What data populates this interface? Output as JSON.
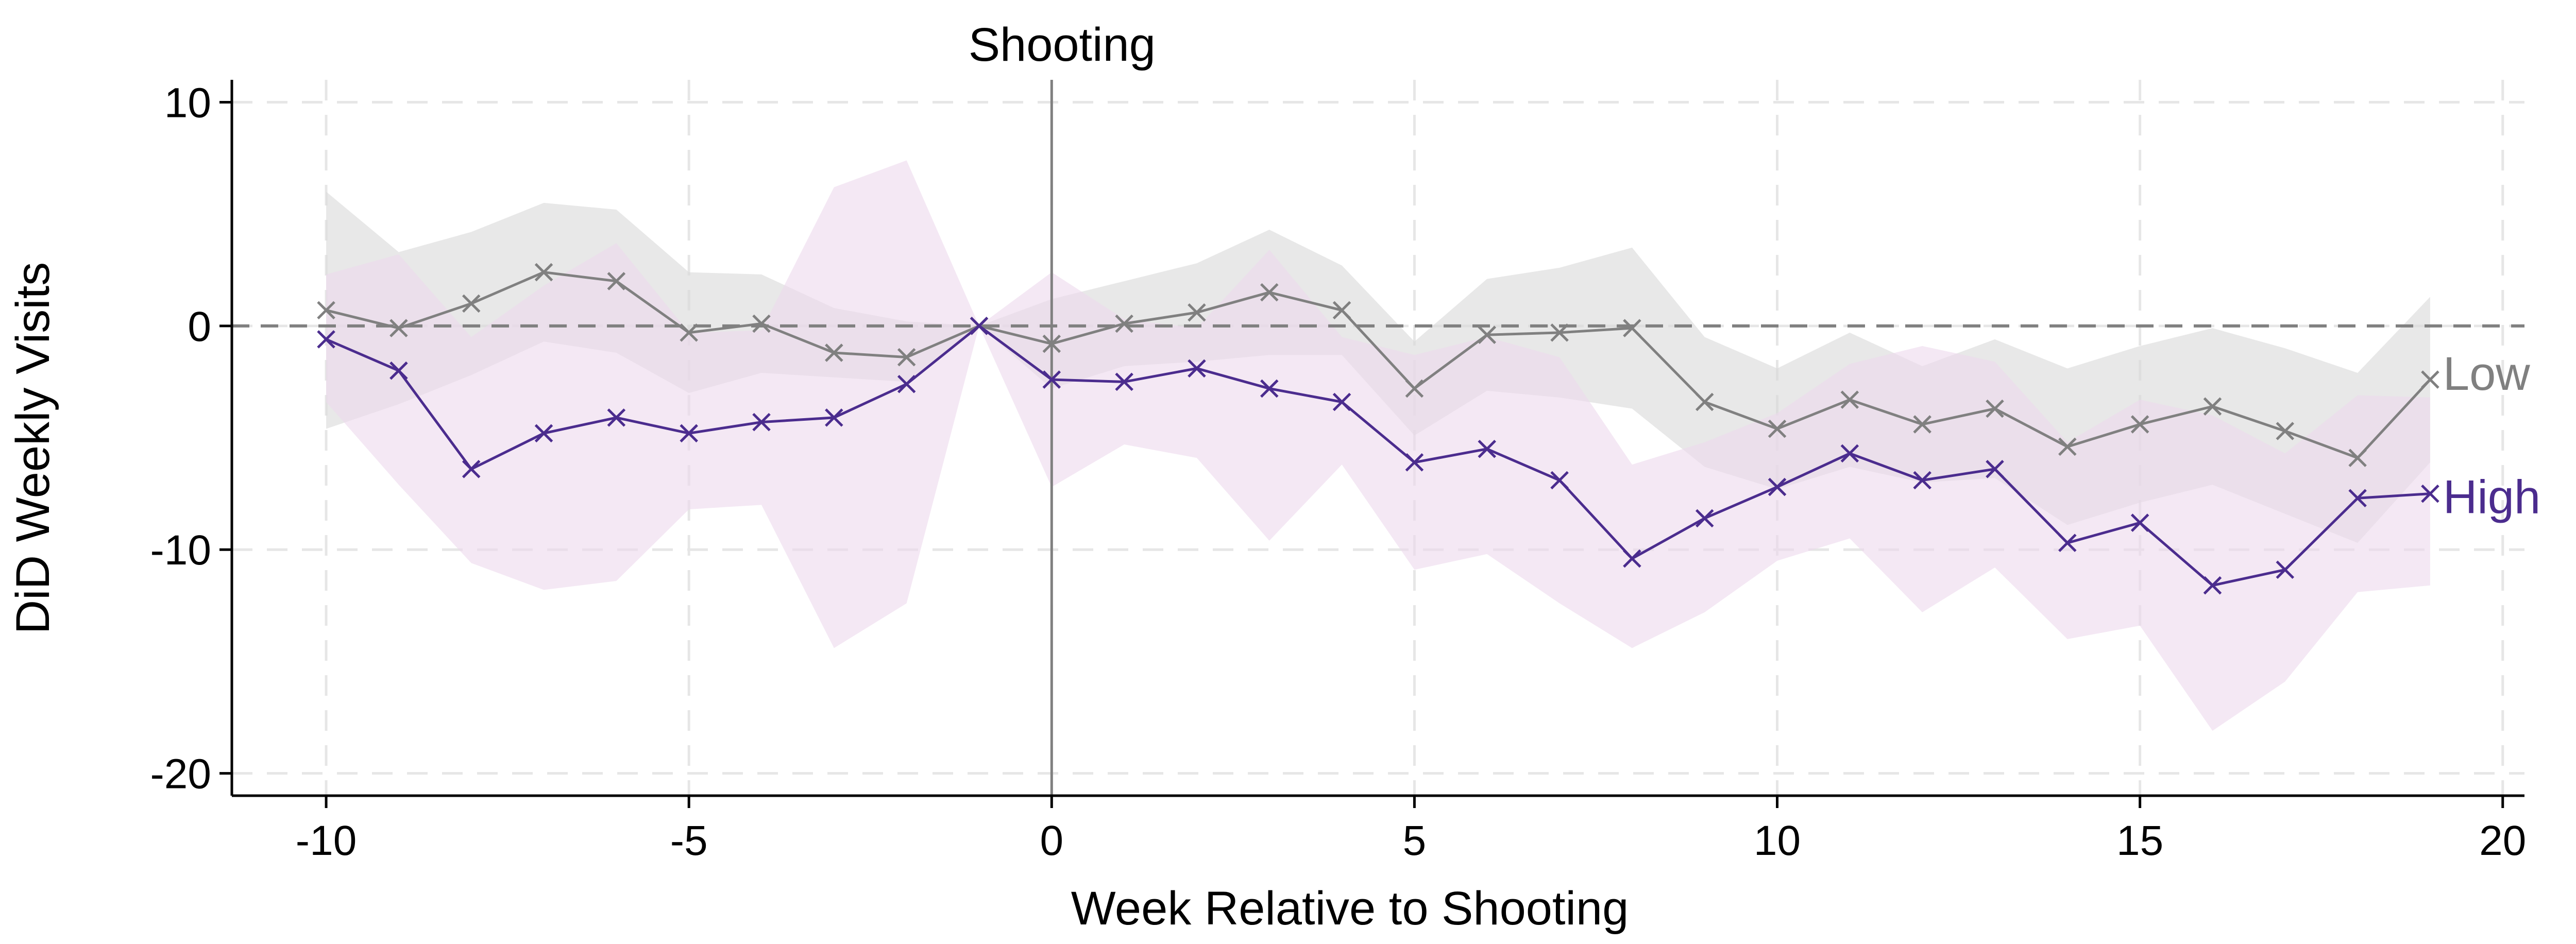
{
  "chart_data": {
    "type": "line",
    "title": "",
    "xlabel": "Week Relative to Shooting",
    "ylabel": "DiD Weekly Visits",
    "xlim": [
      -11.3,
      20.3
    ],
    "ylim": [
      -21,
      11
    ],
    "x_ticks": [
      -10,
      -5,
      0,
      5,
      10,
      15,
      20
    ],
    "y_ticks": [
      10,
      0,
      -10,
      -20
    ],
    "x_tick_labels": [
      "-10",
      "-5",
      "0",
      "5",
      "10",
      "15",
      "20"
    ],
    "y_tick_labels": [
      "10",
      "0",
      "-10",
      "-20"
    ],
    "grid": true,
    "reference_line_y": 0,
    "event_line": {
      "x": 0,
      "label": "Shooting"
    },
    "x": [
      -10,
      -9,
      -8,
      -7,
      -6,
      -5,
      -4,
      -3,
      -2,
      -1,
      0,
      1,
      2,
      3,
      4,
      5,
      6,
      7,
      8,
      9,
      10,
      11,
      12,
      13,
      14,
      15,
      16,
      17,
      18,
      19
    ],
    "series": [
      {
        "name": "Low",
        "color": "#808080",
        "band_color": "#d9d9d9",
        "marker": "x",
        "values": [
          0.7,
          -0.1,
          1.0,
          2.4,
          2.0,
          -0.3,
          0.1,
          -1.2,
          -1.4,
          0.0,
          -0.8,
          0.1,
          0.6,
          1.5,
          0.7,
          -2.8,
          -0.4,
          -0.3,
          -0.1,
          -3.4,
          -4.6,
          -3.3,
          -4.4,
          -3.7,
          -5.4,
          -4.4,
          -3.6,
          -4.7,
          -5.9,
          -2.4
        ],
        "upper": [
          6.0,
          3.3,
          4.2,
          5.5,
          5.2,
          2.4,
          2.3,
          0.8,
          0.2,
          0.0,
          1.2,
          2.0,
          2.8,
          4.3,
          2.7,
          -0.7,
          2.1,
          2.6,
          3.5,
          -0.5,
          -1.9,
          -0.3,
          -1.8,
          -0.6,
          -1.9,
          -0.9,
          -0.1,
          -1.0,
          -2.1,
          1.3
        ],
        "lower": [
          -4.6,
          -3.5,
          -2.2,
          -0.7,
          -1.2,
          -3.0,
          -2.1,
          -2.3,
          -2.5,
          0.0,
          -2.8,
          -1.8,
          -1.6,
          -1.3,
          -1.3,
          -4.9,
          -2.9,
          -3.2,
          -3.7,
          -6.3,
          -7.3,
          -6.3,
          -7.0,
          -6.8,
          -8.9,
          -7.9,
          -7.1,
          -8.4,
          -9.7,
          -6.1
        ]
      },
      {
        "name": "High",
        "color": "#4b2c8e",
        "band_color": "#ecd9ec",
        "marker": "x",
        "values": [
          -0.6,
          -2.0,
          -6.4,
          -4.8,
          -4.1,
          -4.8,
          -4.3,
          -4.1,
          -2.6,
          0.0,
          -2.4,
          -2.5,
          -1.9,
          -2.8,
          -3.4,
          -6.1,
          -5.5,
          -6.9,
          -10.4,
          -8.6,
          -7.2,
          -5.7,
          -6.9,
          -6.4,
          -9.7,
          -8.8,
          -11.6,
          -10.9,
          -7.7,
          -7.5
        ],
        "upper": [
          2.3,
          3.2,
          -0.5,
          1.8,
          3.7,
          -0.3,
          -0.2,
          6.2,
          7.4,
          0.0,
          2.4,
          0.3,
          -0.1,
          3.4,
          -0.5,
          -1.3,
          -0.5,
          -1.4,
          -6.2,
          -5.2,
          -3.9,
          -1.7,
          -0.9,
          -1.6,
          -5.2,
          -3.3,
          -4.0,
          -5.7,
          -3.1,
          -3.2
        ],
        "lower": [
          -3.4,
          -7.1,
          -10.6,
          -11.8,
          -11.4,
          -8.2,
          -8.0,
          -14.4,
          -12.4,
          0.0,
          -7.2,
          -5.3,
          -5.9,
          -9.6,
          -6.2,
          -10.9,
          -10.2,
          -12.4,
          -14.4,
          -12.8,
          -10.5,
          -9.5,
          -12.8,
          -10.8,
          -14.0,
          -13.4,
          -18.1,
          -15.9,
          -11.9,
          -11.6
        ]
      }
    ]
  }
}
